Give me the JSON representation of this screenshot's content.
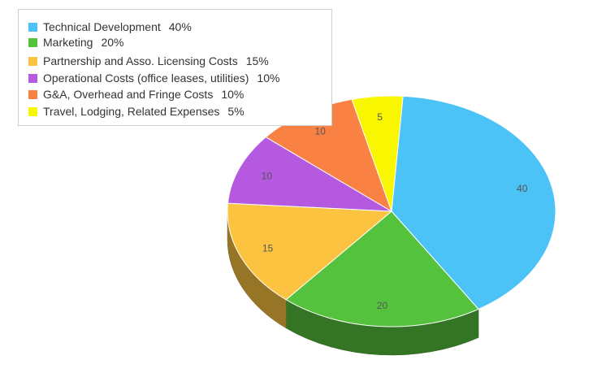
{
  "chart_data": {
    "type": "pie",
    "style": "3d",
    "title": "",
    "slices": [
      {
        "label": "Technical Development",
        "value": 40,
        "pct": "40%",
        "color": "#4bc3f7",
        "value_label": "40"
      },
      {
        "label": "Marketing",
        "value": 20,
        "pct": "20%",
        "color": "#55c23d",
        "value_label": "20"
      },
      {
        "label": "Partnership and Asso. Licensing Costs",
        "value": 15,
        "pct": "15%",
        "color": "#fbc33f",
        "value_label": "15"
      },
      {
        "label": "Operational Costs (office leases, utilities)",
        "value": 10,
        "pct": "10%",
        "color": "#b459e0",
        "value_label": "10"
      },
      {
        "label": "G&A, Overhead and Fringe Costs",
        "value": 10,
        "pct": "10%",
        "color": "#f98143",
        "value_label": "10"
      },
      {
        "label": "Travel, Lodging, Related Expenses",
        "value": 5,
        "pct": "5%",
        "color": "#f8f600",
        "value_label": "5"
      }
    ],
    "legend_position": "top-left"
  }
}
